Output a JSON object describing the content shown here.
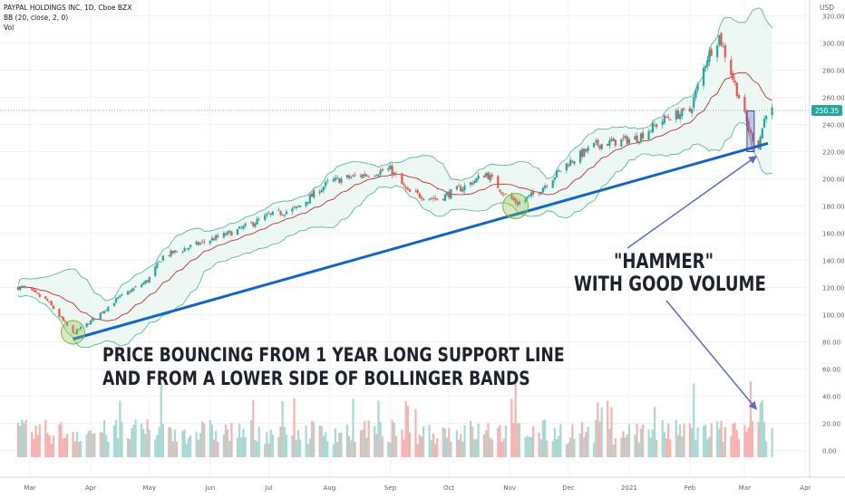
{
  "header": {
    "symbol": "PAYPAL HOLDINGS INC, 1D, Cboe BZX",
    "indicator": "BB (20, close, 2, 0)",
    "volume_label": "Vol",
    "currency": "USD"
  },
  "price_tag": "250.35",
  "annotations": {
    "left_line1": "PRICE BOUNCING FROM 1 YEAR LONG SUPPORT LINE",
    "left_line2": "AND FROM A LOWER SIDE OF BOLLINGER BANDS",
    "right_line1": "\"HAMMER\"",
    "right_line2": "WITH GOOD VOLUME"
  },
  "colors": {
    "up": "#26a69a",
    "down": "#ef5350",
    "band": "#4caf8e",
    "basis": "#b71c1c",
    "trendline": "#1565c0",
    "arrow": "#5c6bc0",
    "highlight_circle": "#8bc34a"
  },
  "chart_data": {
    "type": "candlestick",
    "title": "PAYPAL HOLDINGS INC, 1D, Cboe BZX",
    "price_axis": {
      "ticks": [
        "320.00",
        "300.00",
        "280.00",
        "260.00",
        "240.00",
        "220.00",
        "200.00",
        "180.00",
        "160.00",
        "140.00",
        "120.00",
        "100.00",
        "80.00",
        "60.00",
        "40.00",
        "20.00",
        "0.00"
      ],
      "range": [
        0,
        320
      ]
    },
    "time_axis": {
      "ticks": [
        "Mar",
        "Apr",
        "May",
        "Jun",
        "Jul",
        "Aug",
        "Sep",
        "Oct",
        "Nov",
        "Dec",
        "2021",
        "Feb",
        "Mar",
        "Apr"
      ]
    },
    "last_price": 250.35,
    "price_path": [
      {
        "date": "2020-02-27",
        "close": 120
      },
      {
        "date": "2020-03-10",
        "close": 110
      },
      {
        "date": "2020-03-23",
        "close": 86
      },
      {
        "date": "2020-04-01",
        "close": 95
      },
      {
        "date": "2020-04-15",
        "close": 112
      },
      {
        "date": "2020-04-30",
        "close": 125
      },
      {
        "date": "2020-05-08",
        "close": 143
      },
      {
        "date": "2020-06-01",
        "close": 155
      },
      {
        "date": "2020-06-15",
        "close": 162
      },
      {
        "date": "2020-07-01",
        "close": 173
      },
      {
        "date": "2020-07-15",
        "close": 178
      },
      {
        "date": "2020-08-01",
        "close": 198
      },
      {
        "date": "2020-08-15",
        "close": 202
      },
      {
        "date": "2020-09-01",
        "close": 207
      },
      {
        "date": "2020-09-10",
        "close": 190
      },
      {
        "date": "2020-09-25",
        "close": 185
      },
      {
        "date": "2020-10-10",
        "close": 195
      },
      {
        "date": "2020-10-20",
        "close": 204
      },
      {
        "date": "2020-10-30",
        "close": 188
      },
      {
        "date": "2020-11-05",
        "close": 182
      },
      {
        "date": "2020-11-15",
        "close": 190
      },
      {
        "date": "2020-12-01",
        "close": 212
      },
      {
        "date": "2020-12-15",
        "close": 225
      },
      {
        "date": "2021-01-05",
        "close": 230
      },
      {
        "date": "2021-01-20",
        "close": 245
      },
      {
        "date": "2021-02-01",
        "close": 250
      },
      {
        "date": "2021-02-10",
        "close": 290
      },
      {
        "date": "2021-02-16",
        "close": 305
      },
      {
        "date": "2021-02-25",
        "close": 265
      },
      {
        "date": "2021-03-04",
        "close": 232
      },
      {
        "date": "2021-03-08",
        "close": 225
      },
      {
        "date": "2021-03-12",
        "close": 250
      }
    ],
    "support_line": [
      {
        "date": "2020-03-23",
        "price": 82
      },
      {
        "date": "2021-03-15",
        "price": 227
      }
    ],
    "volume": {
      "note": "daily volume histogram shown on a separate lower pane",
      "spikes": [
        {
          "date": "2020-05-07",
          "value": "high"
        },
        {
          "date": "2020-11-04",
          "value": "high"
        },
        {
          "date": "2021-02-03",
          "value": "high"
        },
        {
          "date": "2021-03-04",
          "value": "high"
        }
      ]
    }
  }
}
